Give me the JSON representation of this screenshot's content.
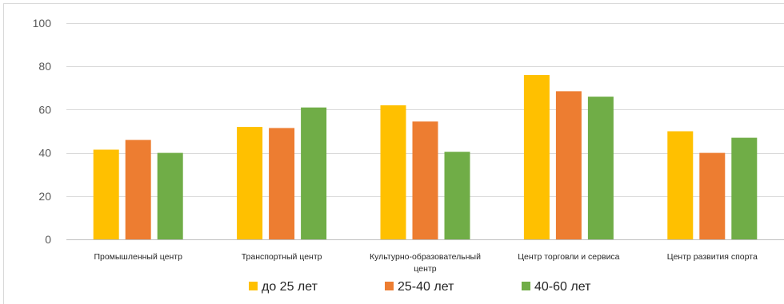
{
  "chart_data": {
    "type": "bar",
    "categories": [
      [
        "Промышленный центр"
      ],
      [
        "Транспортный центр"
      ],
      [
        "Культурно-образовательный",
        "центр"
      ],
      [
        "Центр торговли и сервиса"
      ],
      [
        "Центр развития спорта"
      ]
    ],
    "series": [
      {
        "name": "до 25 лет",
        "color": "#FFC000",
        "values": [
          41.5,
          52,
          62,
          76,
          50
        ]
      },
      {
        "name": "25-40 лет",
        "color": "#ED7D31",
        "values": [
          46,
          51.5,
          54.5,
          68.5,
          40
        ]
      },
      {
        "name": "40-60 лет",
        "color": "#70AD47",
        "values": [
          40,
          61,
          40.5,
          66,
          47
        ]
      }
    ],
    "ylim": [
      0,
      100
    ],
    "yticks": [
      0,
      20,
      40,
      60,
      80,
      100
    ],
    "grid": true,
    "legend": "bottom"
  }
}
